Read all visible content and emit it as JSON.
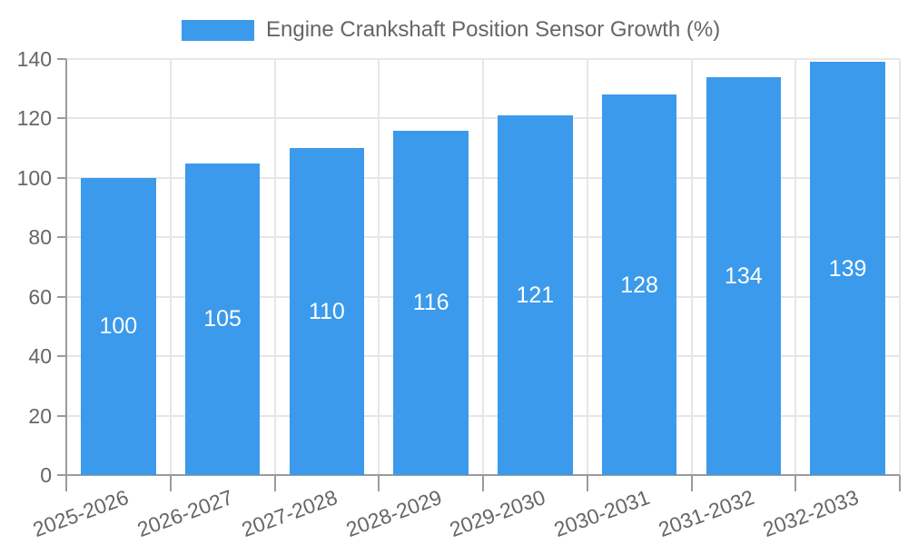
{
  "chart_data": {
    "type": "bar",
    "title": "Engine Crankshaft Position Sensor Growth (%)",
    "legend": {
      "label": "Engine Crankshaft Position Sensor Growth (%)",
      "position": "top"
    },
    "categories": [
      "2025-2026",
      "2026-2027",
      "2027-2028",
      "2028-2029",
      "2029-2030",
      "2030-2031",
      "2031-2032",
      "2032-2033"
    ],
    "values": [
      100,
      105,
      110,
      116,
      121,
      128,
      134,
      139
    ],
    "value_labels": [
      "100",
      "105",
      "110",
      "116",
      "121",
      "128",
      "134",
      "139"
    ],
    "xlabel": "",
    "ylabel": "",
    "ylim": [
      0,
      140
    ],
    "yticks": [
      0,
      20,
      40,
      60,
      80,
      100,
      120,
      140
    ],
    "ytick_labels": [
      "0",
      "20",
      "40",
      "60",
      "80",
      "100",
      "120",
      "140"
    ],
    "grid": true,
    "x_label_rotation_deg": -20,
    "colors": {
      "bar": "#3b9aeb",
      "grid": "#e6e6e6",
      "axis": "#9b9b9b",
      "tick_text": "#666666",
      "legend_text": "#666666",
      "value_text": "#ffffff",
      "background": "#ffffff"
    }
  }
}
